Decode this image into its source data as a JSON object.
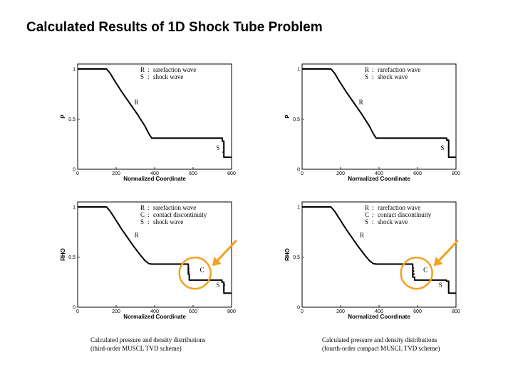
{
  "slide": {
    "title": "Calculated Results of 1D Shock Tube Problem",
    "captions": [
      {
        "line1": "Calculated pressure and density distributions",
        "line2": "(third-order MUSCL TVD scheme)"
      },
      {
        "line1": "Calculated pressure and density distributions",
        "line2": "(fourth-order compact MUSCL TVD scheme)"
      }
    ]
  },
  "colors": {
    "highlight": "#f5a020",
    "curve": "#000000"
  },
  "chart_data": [
    {
      "type": "line",
      "xlabel": "Normalized Coordinate",
      "ylabel": "P",
      "xlim": [
        0,
        800
      ],
      "ylim": [
        0,
        1.05
      ],
      "xticks": [
        "0",
        "200",
        "400",
        "600",
        "800"
      ],
      "yticks": [
        "0",
        "0.5",
        "1"
      ],
      "legend": [
        {
          "key": "R",
          "text": "rarefaction wave"
        },
        {
          "key": "S",
          "text": "shock wave"
        }
      ],
      "annotations": [
        {
          "text": "R",
          "x": 295,
          "y": 0.65
        },
        {
          "text": "S",
          "x": 720,
          "y": 0.19
        }
      ],
      "series": [
        {
          "x": [
            0,
            150,
            170,
            190,
            210,
            230,
            250,
            270,
            290,
            310,
            330,
            350,
            370,
            385,
            500,
            600,
            700,
            752,
            752,
            760,
            760,
            800
          ],
          "y": [
            1.0,
            1.0,
            0.955,
            0.89,
            0.83,
            0.77,
            0.715,
            0.66,
            0.605,
            0.55,
            0.49,
            0.43,
            0.355,
            0.31,
            0.31,
            0.31,
            0.31,
            0.31,
            0.28,
            0.28,
            0.12,
            0.12
          ]
        }
      ],
      "points": [
        {
          "x": 760,
          "y": 0.22
        },
        {
          "x": 757,
          "y": 0.17
        }
      ]
    },
    {
      "type": "line",
      "xlabel": "Normalized Coordinate",
      "ylabel": "P",
      "xlim": [
        0,
        800
      ],
      "ylim": [
        0,
        1.05
      ],
      "xticks": [
        "0",
        "200",
        "400",
        "600",
        "800"
      ],
      "yticks": [
        "0",
        "0.5",
        "1"
      ],
      "legend": [
        {
          "key": "R",
          "text": "rarefaction wave"
        },
        {
          "key": "S",
          "text": "shock wave"
        }
      ],
      "annotations": [
        {
          "text": "R",
          "x": 295,
          "y": 0.65
        },
        {
          "text": "S",
          "x": 720,
          "y": 0.19
        }
      ],
      "series": [
        {
          "x": [
            0,
            150,
            170,
            190,
            210,
            230,
            250,
            270,
            290,
            310,
            330,
            350,
            370,
            385,
            500,
            600,
            700,
            752,
            752,
            762,
            762,
            800
          ],
          "y": [
            1.0,
            1.0,
            0.955,
            0.89,
            0.83,
            0.77,
            0.715,
            0.66,
            0.605,
            0.55,
            0.49,
            0.43,
            0.355,
            0.31,
            0.31,
            0.31,
            0.31,
            0.31,
            0.29,
            0.29,
            0.12,
            0.12
          ]
        }
      ],
      "points": [
        {
          "x": 762,
          "y": 0.21
        }
      ]
    },
    {
      "type": "line",
      "xlabel": "Normalized Coordinate",
      "ylabel": "RHO",
      "xlim": [
        0,
        800
      ],
      "ylim": [
        0,
        1.05
      ],
      "xticks": [
        "0",
        "200",
        "400",
        "600",
        "800"
      ],
      "yticks": [
        "0",
        "0.5",
        "1"
      ],
      "legend": [
        {
          "key": "R",
          "text": "rarefaction wave"
        },
        {
          "key": "C",
          "text": "contact discontinuity"
        },
        {
          "key": "S",
          "text": "shock wave"
        }
      ],
      "annotations": [
        {
          "text": "R",
          "x": 295,
          "y": 0.7
        },
        {
          "text": "C",
          "x": 635,
          "y": 0.35
        },
        {
          "text": "S",
          "x": 720,
          "y": 0.2
        }
      ],
      "highlight": {
        "x": 610,
        "y": 0.34
      },
      "series": [
        {
          "x": [
            0,
            150,
            170,
            190,
            210,
            230,
            250,
            270,
            290,
            310,
            330,
            350,
            370,
            385,
            470,
            560,
            575,
            575,
            580,
            580,
            700,
            750,
            750,
            760,
            760,
            800
          ],
          "y": [
            1.0,
            1.0,
            0.955,
            0.895,
            0.835,
            0.775,
            0.72,
            0.665,
            0.61,
            0.56,
            0.51,
            0.465,
            0.435,
            0.43,
            0.43,
            0.43,
            0.43,
            0.33,
            0.33,
            0.27,
            0.27,
            0.27,
            0.25,
            0.25,
            0.14,
            0.14
          ]
        }
      ],
      "points": [
        {
          "x": 577,
          "y": 0.38
        },
        {
          "x": 578,
          "y": 0.35
        },
        {
          "x": 762,
          "y": 0.22
        },
        {
          "x": 760,
          "y": 0.18
        }
      ]
    },
    {
      "type": "line",
      "xlabel": "Normalized Coordinate",
      "ylabel": "RHO",
      "xlim": [
        0,
        800
      ],
      "ylim": [
        0,
        1.05
      ],
      "xticks": [
        "0",
        "200",
        "400",
        "600",
        "800"
      ],
      "yticks": [
        "0",
        "0.5",
        "1"
      ],
      "legend": [
        {
          "key": "R",
          "text": "rarefaction wave"
        },
        {
          "key": "C",
          "text": "contact discontinuity"
        },
        {
          "key": "S",
          "text": "shock wave"
        }
      ],
      "annotations": [
        {
          "text": "R",
          "x": 300,
          "y": 0.7
        },
        {
          "text": "C",
          "x": 630,
          "y": 0.35
        },
        {
          "text": "S",
          "x": 710,
          "y": 0.2
        }
      ],
      "highlight": {
        "x": 595,
        "y": 0.34
      },
      "series": [
        {
          "x": [
            0,
            150,
            170,
            190,
            210,
            230,
            250,
            270,
            290,
            310,
            330,
            350,
            370,
            385,
            470,
            560,
            575,
            575,
            585,
            585,
            700,
            750,
            750,
            762,
            762,
            800
          ],
          "y": [
            1.0,
            1.0,
            0.955,
            0.895,
            0.835,
            0.775,
            0.72,
            0.665,
            0.61,
            0.56,
            0.51,
            0.465,
            0.435,
            0.43,
            0.43,
            0.43,
            0.43,
            0.3,
            0.3,
            0.27,
            0.27,
            0.27,
            0.26,
            0.26,
            0.14,
            0.14
          ]
        }
      ],
      "points": [
        {
          "x": 577,
          "y": 0.39
        },
        {
          "x": 579,
          "y": 0.36
        },
        {
          "x": 581,
          "y": 0.33
        }
      ]
    }
  ]
}
